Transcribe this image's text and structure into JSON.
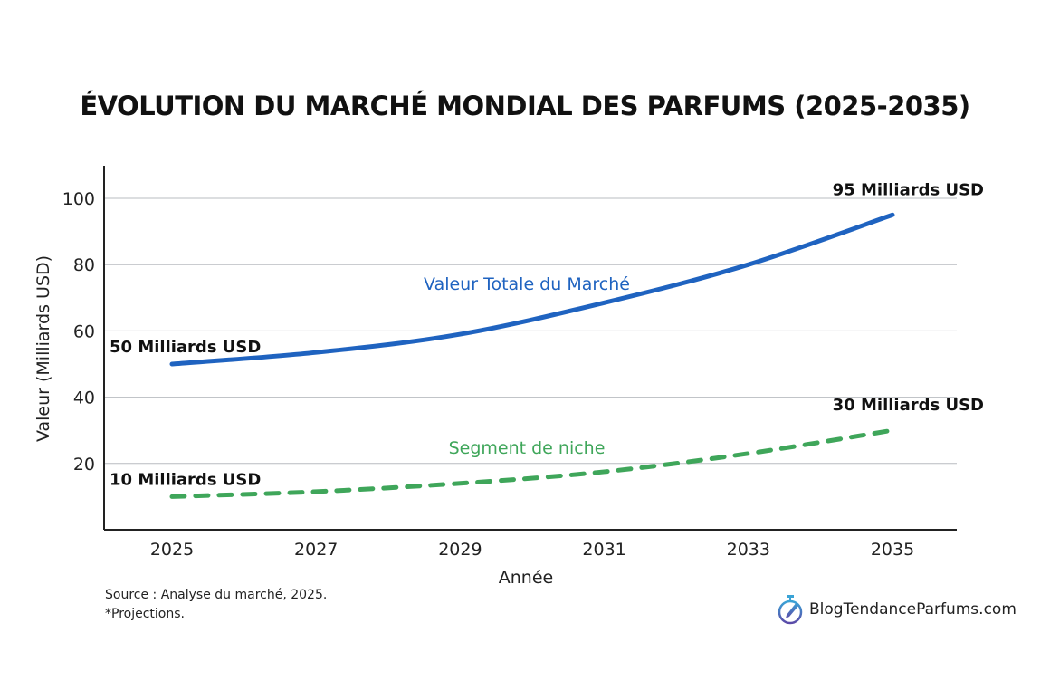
{
  "chart_data": {
    "type": "line",
    "title": "ÉVOLUTION DU MARCHÉ MONDIAL DES PARFUMS (2025-2035)",
    "xlabel": "Année",
    "ylabel": "Valeur (Milliards USD)",
    "x": [
      2025,
      2027,
      2029,
      2031,
      2033,
      2035
    ],
    "x_tick_labels": [
      "2025",
      "2027",
      "2029",
      "2031",
      "2033",
      "2035"
    ],
    "y_tick_labels": [
      "20",
      "40",
      "60",
      "80",
      "100"
    ],
    "xlim": [
      2024.05,
      2035.9
    ],
    "ylim": [
      0,
      110
    ],
    "grid": "horizontal",
    "series": [
      {
        "name": "Valeur Totale du Marché",
        "values": [
          50,
          53.5,
          59,
          68.5,
          80,
          95
        ],
        "color": "#1f63c0",
        "style": "solid",
        "start_label": "50 Milliards USD",
        "end_label": "95 Milliards USD"
      },
      {
        "name": "Segment de niche",
        "values": [
          10,
          11.5,
          14,
          17.5,
          23,
          30
        ],
        "color": "#3fa65a",
        "style": "dashed",
        "start_label": "10 Milliards USD",
        "end_label": "30 Milliards USD"
      }
    ]
  },
  "footer": {
    "source": "Source : Analyse du marché, 2025.",
    "note": "*Projections."
  },
  "logo": {
    "text": "BlogTendanceParfums.com",
    "icon": "stopwatch-pen-icon"
  }
}
